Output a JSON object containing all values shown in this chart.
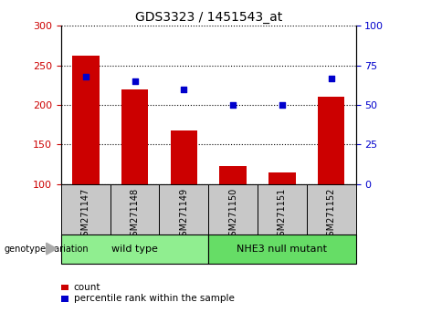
{
  "title": "GDS3323 / 1451543_at",
  "categories": [
    "GSM271147",
    "GSM271148",
    "GSM271149",
    "GSM271150",
    "GSM271151",
    "GSM271152"
  ],
  "bar_values": [
    262,
    220,
    168,
    123,
    115,
    210
  ],
  "scatter_values_pct": [
    68,
    65,
    60,
    50,
    50,
    67
  ],
  "bar_color": "#cc0000",
  "scatter_color": "#0000cc",
  "ylim_left": [
    100,
    300
  ],
  "ylim_right": [
    0,
    100
  ],
  "yticks_left": [
    100,
    150,
    200,
    250,
    300
  ],
  "yticks_right": [
    0,
    25,
    50,
    75,
    100
  ],
  "groups": [
    {
      "label": "wild type",
      "indices": [
        0,
        1,
        2
      ],
      "color": "#90ee90"
    },
    {
      "label": "NHE3 null mutant",
      "indices": [
        3,
        4,
        5
      ],
      "color": "#66dd66"
    }
  ],
  "group_label": "genotype/variation",
  "legend_count_label": "count",
  "legend_pct_label": "percentile rank within the sample",
  "bar_width": 0.55,
  "tick_area_bg": "#c8c8c8",
  "fig_bg": "#ffffff",
  "title_fontsize": 10,
  "tick_fontsize": 7,
  "group_fontsize": 8,
  "legend_fontsize": 7.5
}
